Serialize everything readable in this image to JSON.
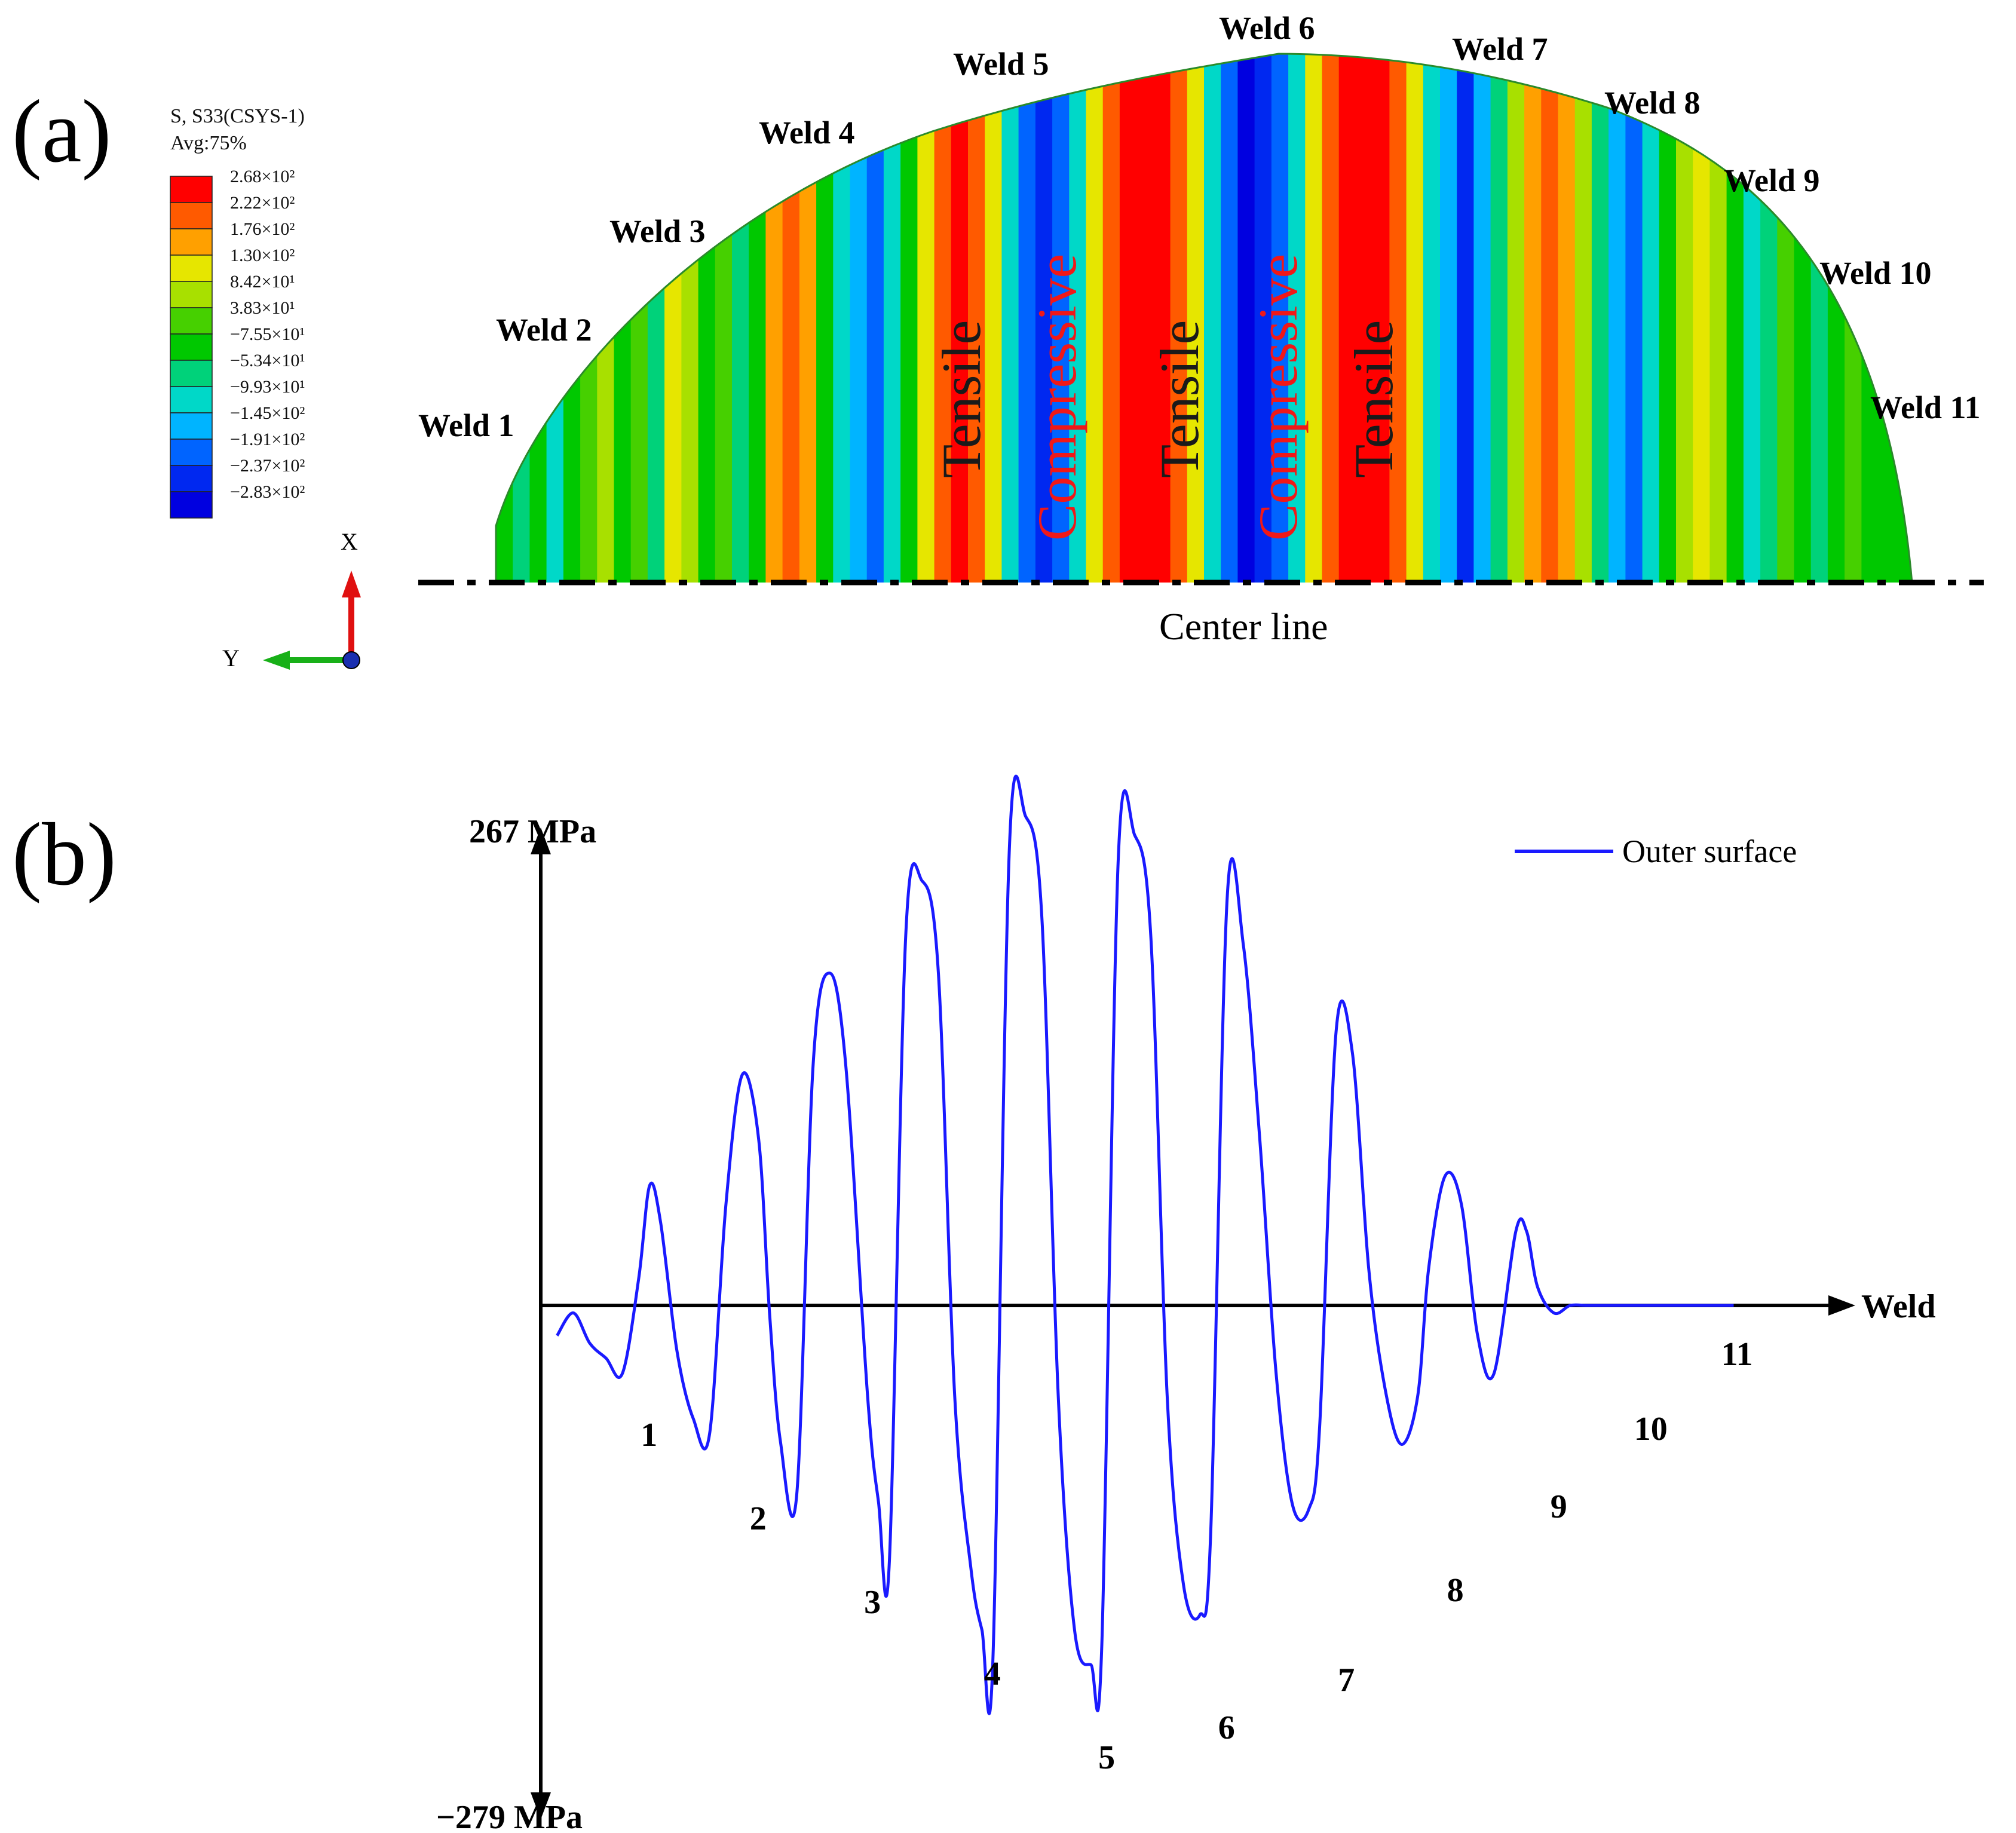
{
  "panel_a": {
    "tag": "(a)",
    "legend": {
      "title_line1": "S,  S33(CSYS-1)",
      "title_line2": "Avg:75%",
      "labels": [
        "2.68×10²",
        "2.22×10²",
        "1.76×10²",
        "1.30×10²",
        "8.42×10¹",
        "3.83×10¹",
        "−7.55×10¹",
        "−5.34×10¹",
        "−9.93×10¹",
        "−1.45×10²",
        "−1.91×10²",
        "−2.37×10²",
        "−2.83×10²"
      ],
      "colors": [
        "#ff0000",
        "#ff5a00",
        "#ffa000",
        "#e6e600",
        "#a8e000",
        "#46d000",
        "#00c800",
        "#00d27a",
        "#00d8c8",
        "#00b4ff",
        "#0064ff",
        "#0028f0",
        "#0000e0"
      ]
    },
    "triad": {
      "x": "X",
      "y": "Y"
    },
    "weld_labels": [
      "Weld 1",
      "Weld 2",
      "Weld 3",
      "Weld 4",
      "Weld 5",
      "Weld 6",
      "Weld 7",
      "Weld 8",
      "Weld 9",
      "Weld 10",
      "Weld 11"
    ],
    "zone_labels": [
      "Tensile",
      "Compressive",
      "Tensile",
      "Compressive",
      "Tensile"
    ],
    "center_line": "Center line"
  },
  "panel_b": {
    "tag": "(b)"
  },
  "chart_data": {
    "type": "line",
    "title": "",
    "xlabel": "Weld",
    "ylabel": "",
    "y_max_label": "267 MPa",
    "y_min_label": "−279 MPa",
    "ylim": [
      -279,
      267
    ],
    "xlim": [
      0,
      11.6
    ],
    "x_tick_labels": [
      "1",
      "2",
      "3",
      "4",
      "5",
      "6",
      "7",
      "8",
      "9",
      "10",
      "11"
    ],
    "legend_position": "top-right",
    "series": [
      {
        "name": "Outer surface",
        "color": "#1a1aff",
        "x": [
          0.15,
          0.3,
          0.45,
          0.6,
          0.75,
          0.9,
          1.0,
          1.1,
          1.25,
          1.4,
          1.55,
          1.7,
          1.85,
          2.0,
          2.1,
          2.2,
          2.35,
          2.5,
          2.65,
          2.8,
          3.0,
          3.1,
          3.2,
          3.35,
          3.5,
          3.65,
          3.8,
          3.95,
          4.05,
          4.15,
          4.3,
          4.45,
          4.6,
          4.75,
          4.9,
          5.05,
          5.15,
          5.3,
          5.45,
          5.6,
          5.75,
          5.9,
          6.05,
          6.15,
          6.3,
          6.45,
          6.6,
          6.75,
          6.9,
          7.05,
          7.15,
          7.3,
          7.45,
          7.6,
          7.75,
          7.9,
          8.05,
          8.15,
          8.3,
          8.45,
          8.6,
          8.75,
          8.95,
          9.05,
          9.15,
          9.3,
          9.45,
          9.6,
          9.75,
          9.95,
          10.05,
          10.2,
          10.35,
          10.5,
          10.65,
          10.85,
          10.95
        ],
        "y": [
          -20,
          -5,
          -25,
          -35,
          -45,
          15,
          65,
          45,
          -30,
          -75,
          -85,
          55,
          125,
          90,
          -5,
          -90,
          -125,
          130,
          180,
          130,
          -60,
          -130,
          -170,
          200,
          230,
          180,
          -60,
          -175,
          -215,
          -235,
          245,
          265,
          210,
          -60,
          -215,
          -238,
          -225,
          240,
          255,
          200,
          -60,
          -185,
          -205,
          -150,
          220,
          195,
          90,
          -45,
          -132,
          -135,
          -80,
          148,
          137,
          20,
          -55,
          -92,
          -60,
          20,
          70,
          55,
          -20,
          -45,
          40,
          40,
          10,
          -5,
          0,
          0,
          0,
          0,
          0,
          0,
          0,
          0,
          0,
          0,
          0
        ]
      }
    ]
  }
}
